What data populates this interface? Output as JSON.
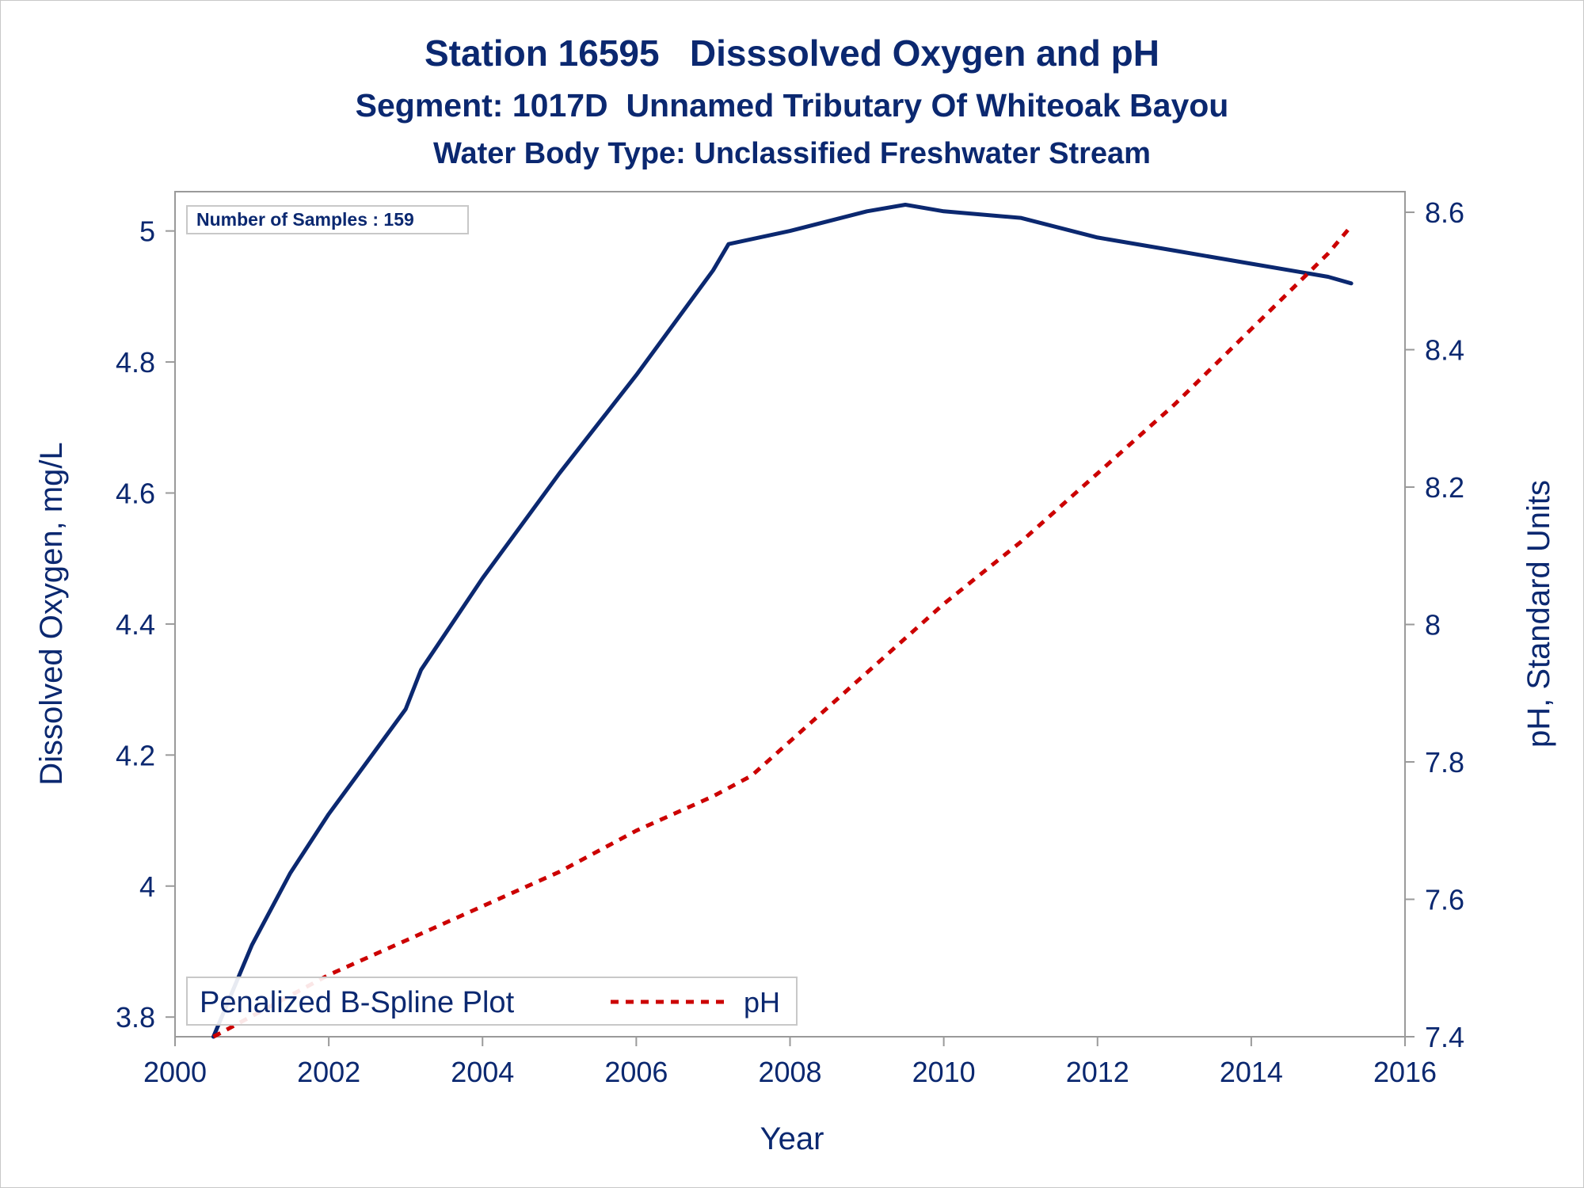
{
  "chart_data": {
    "type": "line",
    "title": "Station 16595   Disssolved Oxygen and pH",
    "subtitle": "Segment: 1017D  Unnamed Tributary Of Whiteoak Bayou",
    "subtitle2": "Water Body Type: Unclassified Freshwater Stream",
    "xlabel": "Year",
    "ylabel": "Dissolved Oxygen, mg/L",
    "y2label": "pH, Standard Units",
    "xlim": [
      2000,
      2016
    ],
    "ylim": [
      3.77,
      5.06
    ],
    "y2lim": [
      7.4,
      8.63
    ],
    "x_ticks": [
      2000,
      2002,
      2004,
      2006,
      2008,
      2010,
      2012,
      2014,
      2016
    ],
    "x_tick_labels": [
      "2000",
      "2002",
      "2004",
      "2006",
      "2008",
      "2010",
      "2012",
      "2014",
      "2016"
    ],
    "y_ticks": [
      3.8,
      4,
      4.2,
      4.4,
      4.6,
      4.8,
      5
    ],
    "y_tick_labels": [
      "3.8",
      "4",
      "4.2",
      "4.4",
      "4.6",
      "4.8",
      "5"
    ],
    "y2_ticks": [
      7.4,
      7.6,
      7.8,
      8,
      8.2,
      8.4,
      8.6
    ],
    "y2_tick_labels": [
      "7.4",
      "7.6",
      "7.8",
      "8",
      "8.2",
      "8.4",
      "8.6"
    ],
    "grid": false,
    "annotation": "Number of Samples : 159",
    "legend": {
      "placement": "bottom-left",
      "title": "Penalized B-Spline Plot",
      "entries": [
        "pH"
      ]
    },
    "series": [
      {
        "axis": "left",
        "color": "#0b2870",
        "style": "solid",
        "x": [
          2000.5,
          2001,
          2001.5,
          2002,
          2002.5,
          2003,
          2003.2,
          2004,
          2005,
          2006,
          2007,
          2007.2,
          2008,
          2009,
          2009.5,
          2010,
          2011,
          2012,
          2013,
          2014,
          2015,
          2015.3
        ],
        "values": [
          3.77,
          3.91,
          4.02,
          4.11,
          4.19,
          4.27,
          4.33,
          4.47,
          4.63,
          4.78,
          4.94,
          4.98,
          5.0,
          5.03,
          5.04,
          5.03,
          5.02,
          4.99,
          4.97,
          4.95,
          4.93,
          4.92
        ]
      },
      {
        "name": "pH",
        "axis": "right",
        "color": "#cc0000",
        "style": "dashed",
        "x": [
          2000.5,
          2001,
          2002,
          2003,
          2004,
          2005,
          2006,
          2007,
          2007.5,
          2008,
          2009,
          2010,
          2011,
          2012,
          2013,
          2014,
          2015,
          2015.3
        ],
        "values": [
          7.4,
          7.43,
          7.49,
          7.54,
          7.59,
          7.64,
          7.7,
          7.75,
          7.78,
          7.83,
          7.93,
          8.03,
          8.12,
          8.22,
          8.32,
          8.43,
          8.54,
          8.58
        ]
      }
    ]
  }
}
